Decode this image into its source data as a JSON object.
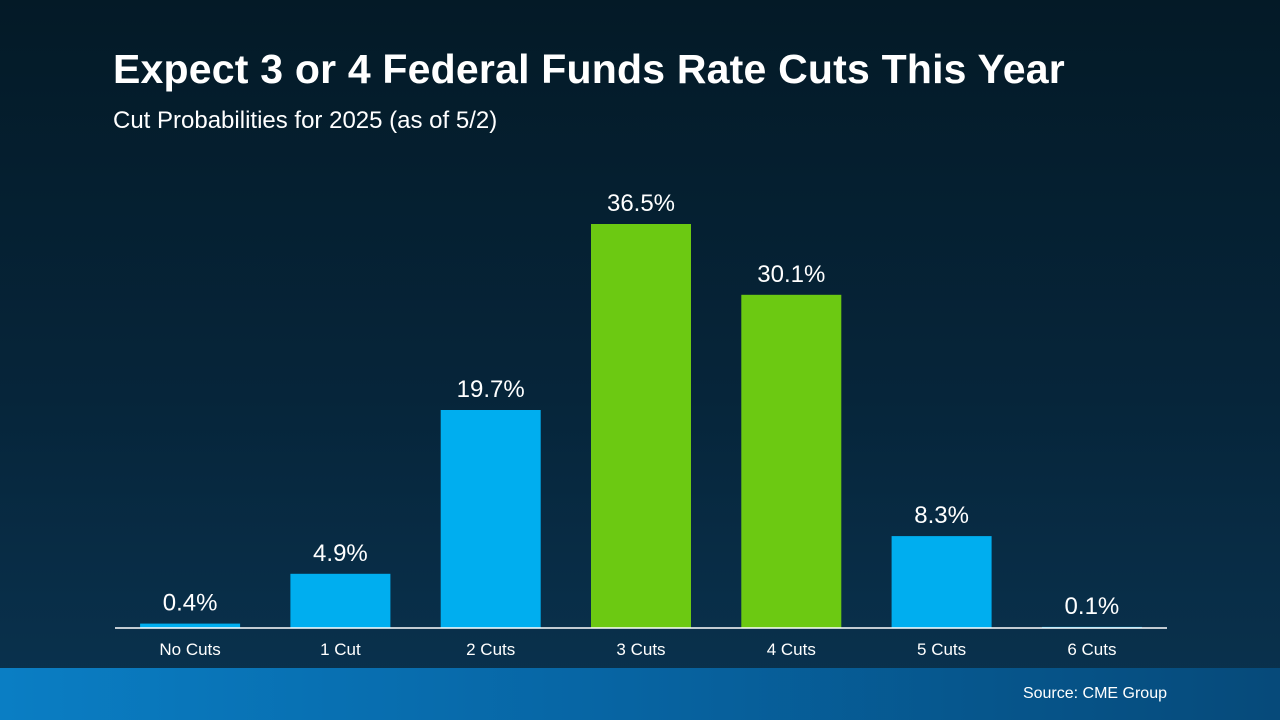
{
  "title": "Expect 3 or 4 Federal Funds Rate Cuts This Year",
  "subtitle": "Cut Probabilities for 2025 (as of 5/2)",
  "source": "Source: CME Group",
  "colors": {
    "blue": "#00aeef",
    "green": "#6cc912",
    "axis": "#ffffff"
  },
  "chart_data": {
    "type": "bar",
    "title": "Expect 3 or 4 Federal Funds Rate Cuts This Year",
    "subtitle": "Cut Probabilities for 2025 (as of 5/2)",
    "xlabel": "",
    "ylabel": "",
    "ylim": [
      0,
      36.5
    ],
    "grid": false,
    "categories": [
      "No Cuts",
      "1 Cut",
      "2 Cuts",
      "3 Cuts",
      "4 Cuts",
      "5 Cuts",
      "6 Cuts"
    ],
    "values": [
      0.4,
      4.9,
      19.7,
      36.5,
      30.1,
      8.3,
      0.1
    ],
    "labels": [
      "0.4%",
      "4.9%",
      "19.7%",
      "36.5%",
      "30.1%",
      "8.3%",
      "0.1%"
    ],
    "highlight": [
      "blue",
      "blue",
      "blue",
      "green",
      "green",
      "blue",
      "blue"
    ]
  }
}
